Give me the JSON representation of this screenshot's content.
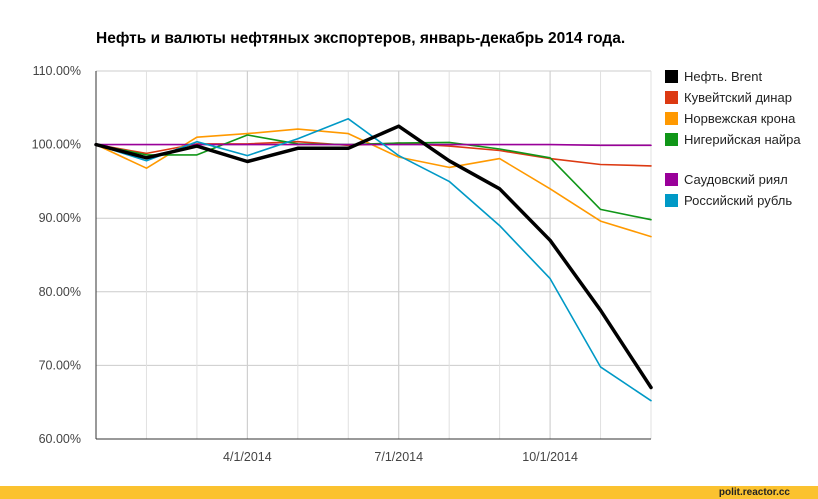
{
  "chart_data": {
    "type": "line",
    "title": "Нефть и валюты нефтяных экспортеров, январь-декабрь 2014 года.",
    "xlabel": "",
    "ylabel": "",
    "ylim": [
      60,
      110
    ],
    "yticks": [
      "110.00%",
      "100.00%",
      "90.00%",
      "80.00%",
      "70.00%",
      "60.00%"
    ],
    "ytick_values": [
      110,
      100,
      90,
      80,
      70,
      60
    ],
    "xticks": [
      "4/1/2014",
      "7/1/2014",
      "10/1/2014"
    ],
    "xtick_months": [
      3,
      6,
      9
    ],
    "x": [
      0,
      1,
      2,
      3,
      4,
      5,
      6,
      7,
      8,
      9,
      10,
      11
    ],
    "grid": true,
    "legend_position": "right",
    "series": [
      {
        "name": "Нефть. Brent",
        "color": "#000000",
        "values": [
          100,
          98.2,
          99.8,
          97.7,
          99.5,
          99.5,
          102.5,
          97.8,
          94,
          87,
          77.5,
          67
        ]
      },
      {
        "name": "Кувейтский динар",
        "color": "#dc3912",
        "values": [
          100,
          98.8,
          100.1,
          100.1,
          100.4,
          99.9,
          100.2,
          99.8,
          99.2,
          98.1,
          97.3,
          97.1
        ]
      },
      {
        "name": "Норвежская крона",
        "color": "#ff9900",
        "values": [
          100,
          96.8,
          101,
          101.5,
          102.1,
          101.5,
          98.3,
          96.9,
          98.1,
          94,
          89.6,
          87.5
        ]
      },
      {
        "name": "Нигерийская найра",
        "color": "#109618",
        "values": [
          100,
          98.6,
          98.6,
          101.3,
          100.1,
          100,
          100.2,
          100.3,
          99.4,
          98.2,
          91.2,
          89.8
        ]
      },
      {
        "name": "Саудовский риял",
        "color": "#990099",
        "values": [
          100,
          100,
          100,
          100,
          100,
          100,
          100,
          100,
          100,
          100,
          99.9,
          99.9
        ]
      },
      {
        "name": "Российский рубль",
        "color": "#0099c6",
        "values": [
          100,
          97.8,
          100.4,
          98.5,
          100.8,
          103.5,
          98.5,
          95,
          89,
          81.8,
          69.8,
          65.2
        ]
      }
    ]
  },
  "watermark": "polit.reactor.cc"
}
